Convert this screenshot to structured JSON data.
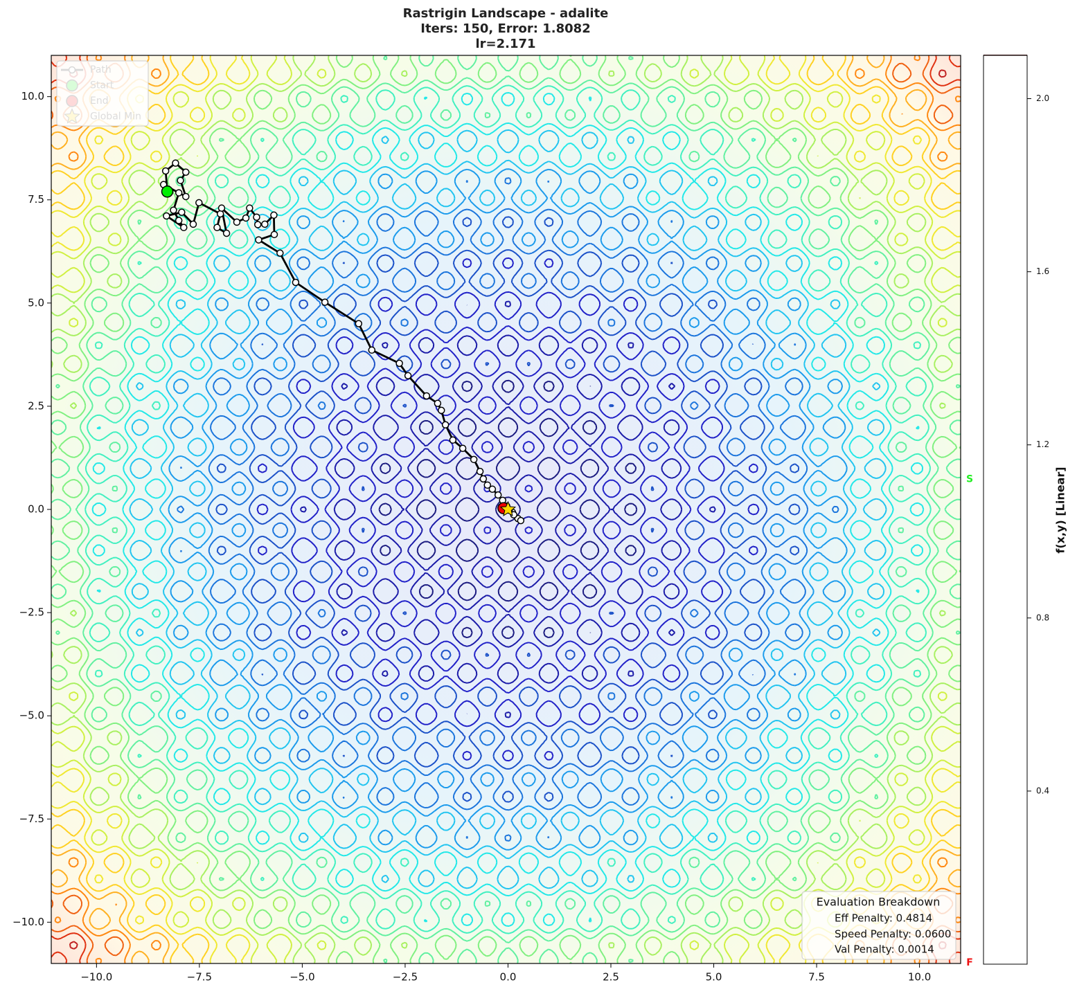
{
  "chart_data": {
    "type": "contour",
    "title": "Rastrigin Landscape - adalite",
    "subtitle": "Iters: 150, Error: 1.8082",
    "subtitle2": "lr=2.171",
    "xlim": [
      -11.1,
      11
    ],
    "ylim": [
      -11,
      11
    ],
    "xticks": [
      {
        "value": -10,
        "label": "−10.0"
      },
      {
        "value": -7.5,
        "label": "−7.5"
      },
      {
        "value": -5,
        "label": "−5.0"
      },
      {
        "value": -2.5,
        "label": "−2.5"
      },
      {
        "value": 0,
        "label": "0.0"
      },
      {
        "value": 2.5,
        "label": "2.5"
      },
      {
        "value": 5,
        "label": "5.0"
      },
      {
        "value": 7.5,
        "label": "7.5"
      },
      {
        "value": 10,
        "label": "10.0"
      }
    ],
    "yticks": [
      {
        "value": -10,
        "label": "−10.0"
      },
      {
        "value": -7.5,
        "label": "−7.5"
      },
      {
        "value": -5,
        "label": "−5.0"
      },
      {
        "value": -2.5,
        "label": "−2.5"
      },
      {
        "value": 0,
        "label": "0.0"
      },
      {
        "value": 2.5,
        "label": "2.5"
      },
      {
        "value": 5,
        "label": "5.0"
      },
      {
        "value": 7.5,
        "label": "7.5"
      },
      {
        "value": 10,
        "label": "10.0"
      }
    ],
    "levels": [
      0.1,
      0.2,
      0.3,
      0.4,
      0.5,
      0.6,
      0.7,
      0.8,
      0.9,
      1.0,
      1.1,
      1.2,
      1.3,
      1.4,
      1.5,
      1.6,
      1.7,
      1.8,
      1.9,
      2.0,
      2.1
    ],
    "level_colors": [
      "#1a1a80",
      "#1a1aa8",
      "#2020c8",
      "#1a50c8",
      "#1a74dc",
      "#1a9aec",
      "#20c4f0",
      "#20e8e8",
      "#40f0c0",
      "#60f0a0",
      "#80f080",
      "#a8f060",
      "#d0f040",
      "#f0e830",
      "#ffd020",
      "#ffb020",
      "#ff8810",
      "#f06010",
      "#e03010",
      "#c02020",
      "#400000"
    ],
    "clim": [
      0,
      2.1
    ],
    "cticks": [
      0.4,
      0.8,
      1.2,
      1.6,
      {
        "value": 2,
        "label": "2.0"
      }
    ],
    "colorbar_label": "f(x,y) [Linear]",
    "colorbar_markers": [
      {
        "label": "S",
        "value": 1.12,
        "color": "#22ee22"
      },
      {
        "label": "F",
        "value": 0.003,
        "color": "#ee1111"
      }
    ],
    "path": {
      "name": "Path",
      "x": [
        -8.28,
        -8.32,
        -8.08,
        -7.83,
        -7.96,
        -7.83,
        -8.37,
        -8.0,
        -8.13,
        -8.0,
        -7.88,
        -8.3,
        -7.93,
        -7.65,
        -7.51,
        -6.99,
        -7.07,
        -6.84,
        -6.96,
        -6.59,
        -6.37,
        -6.28,
        -6.11,
        -6.08,
        -5.91,
        -5.69,
        -5.68,
        -6.06,
        -5.54,
        -5.16,
        -4.45,
        -3.63,
        -3.31,
        -2.64,
        -2.43,
        -1.98,
        -1.71,
        -1.62,
        -1.52,
        -1.34,
        -1.1,
        -0.83,
        -0.68,
        -0.6,
        -0.5,
        -0.38,
        -0.24,
        -0.13,
        -0.03,
        0.11,
        0.24,
        0.31,
        0.14,
        0.03,
        -0.11
      ],
      "y": [
        7.7,
        8.2,
        8.39,
        8.17,
        7.97,
        7.58,
        7.87,
        7.67,
        7.25,
        7.0,
        6.83,
        7.11,
        7.2,
        6.91,
        7.43,
        7.16,
        6.83,
        6.69,
        7.3,
        6.96,
        7.06,
        7.3,
        7.08,
        6.9,
        6.91,
        7.13,
        6.66,
        6.53,
        6.21,
        5.5,
        5.02,
        4.5,
        3.86,
        3.54,
        3.24,
        2.75,
        2.57,
        2.4,
        2.05,
        1.68,
        1.48,
        1.21,
        0.92,
        0.74,
        0.59,
        0.49,
        0.35,
        0.22,
        0.08,
        -0.07,
        -0.22,
        -0.27,
        -0.13,
        -0.02,
        0.03
      ]
    },
    "start": {
      "name": "Start",
      "x": -8.28,
      "y": 7.7,
      "color": "#00ee00"
    },
    "end": {
      "name": "End",
      "x": -0.11,
      "y": 0.03,
      "color": "#ee0000"
    },
    "global_min": {
      "name": "Global Min",
      "x": 0,
      "y": 0,
      "color": "#ffd700"
    },
    "eval_box": {
      "title": "Evaluation Breakdown",
      "lines": [
        "Eff Penalty: 0.4814",
        "Speed Penalty: 0.0600",
        "Val Penalty: 0.0014"
      ]
    }
  }
}
